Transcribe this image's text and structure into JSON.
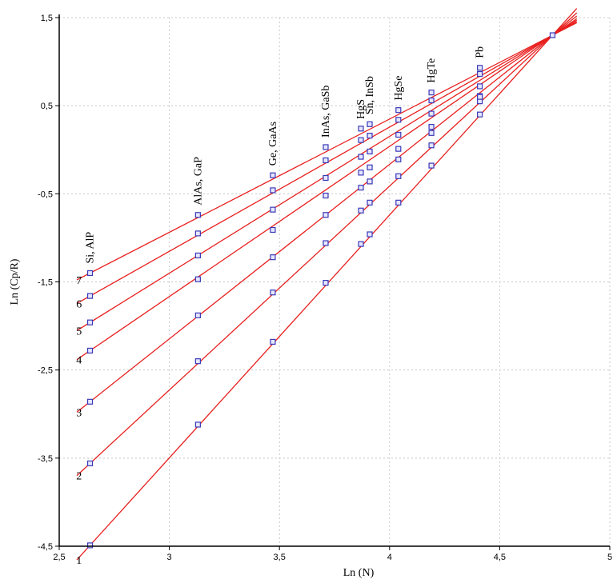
{
  "chart_data": {
    "type": "line",
    "xlabel": "Ln (N)",
    "ylabel": "Ln (Cp/R)",
    "xlim": [
      2.5,
      5.0
    ],
    "ylim": [
      -4.5,
      1.5
    ],
    "xticks": [
      "2,5",
      "3",
      "3,5",
      "4",
      "4,5",
      "5"
    ],
    "xtick_values": [
      2.5,
      3.0,
      3.5,
      4.0,
      4.5,
      5.0
    ],
    "yticks": [
      "1,5",
      "0,5",
      "-0,5",
      "-1,5",
      "-2,5",
      "-3,5",
      "-4,5"
    ],
    "ytick_values": [
      1.5,
      0.5,
      -0.5,
      -1.5,
      -2.5,
      -3.5,
      -4.5
    ],
    "grid": true,
    "line_color": "#e8201f",
    "marker_color": "#3a3ab8",
    "convergence_point": [
      4.74,
      1.3
    ],
    "line_x_range": [
      2.58,
      4.85
    ],
    "compound_labels": [
      {
        "text": "Si, AlP",
        "x": 2.64
      },
      {
        "text": "AlAs, GaP",
        "x": 3.13
      },
      {
        "text": "Ge, GaAs",
        "x": 3.47
      },
      {
        "text": "InAs, GaSb",
        "x": 3.71
      },
      {
        "text": "HgS",
        "x": 3.87
      },
      {
        "text": "Sn, InSb",
        "x": 3.91
      },
      {
        "text": "HgSe",
        "x": 4.04
      },
      {
        "text": "HgTe",
        "x": 4.19
      },
      {
        "text": "Pb",
        "x": 4.41
      }
    ],
    "marker_x": [
      2.64,
      3.13,
      3.47,
      3.71,
      3.87,
      3.91,
      4.04,
      4.19,
      4.41
    ],
    "series": [
      {
        "label": "1",
        "y": [
          -4.49,
          -3.12,
          -2.18,
          -1.51,
          -1.07,
          -0.96,
          -0.6,
          -0.18,
          0.4
        ]
      },
      {
        "label": "2",
        "y": [
          -3.56,
          -2.4,
          -1.62,
          -1.06,
          -0.69,
          -0.6,
          -0.3,
          0.05,
          0.55
        ]
      },
      {
        "label": "3",
        "y": [
          -2.86,
          -1.88,
          -1.22,
          -0.74,
          -0.43,
          -0.36,
          -0.11,
          0.19,
          0.61
        ]
      },
      {
        "label": "4",
        "y": [
          -2.28,
          -1.47,
          -0.91,
          -0.52,
          -0.26,
          -0.2,
          0.01,
          0.26,
          0.6
        ]
      },
      {
        "label": "5",
        "y": [
          -1.96,
          -1.2,
          -0.68,
          -0.32,
          -0.08,
          -0.02,
          0.17,
          0.41,
          0.72
        ]
      },
      {
        "label": "6",
        "y": [
          -1.66,
          -0.95,
          -0.46,
          -0.12,
          0.11,
          0.16,
          0.34,
          0.56,
          0.86
        ]
      },
      {
        "label": "7",
        "y": [
          -1.4,
          -0.74,
          -0.29,
          0.03,
          0.24,
          0.29,
          0.45,
          0.65,
          0.93
        ]
      }
    ],
    "top_marker": {
      "x": 4.74,
      "y": 1.3
    }
  }
}
